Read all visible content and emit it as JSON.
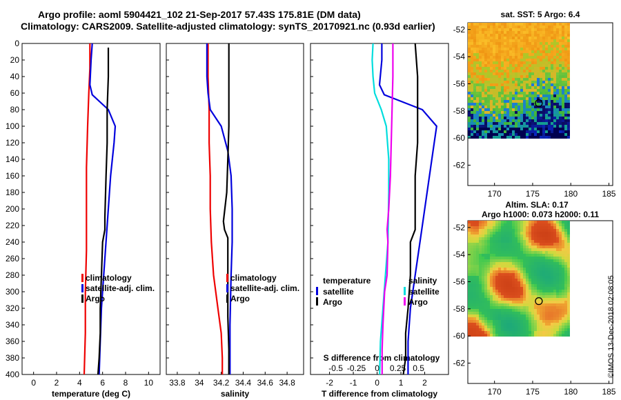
{
  "title": {
    "line1": "Argo profile: aoml 5904421_102 21-Sep-2017 57.43S 175.81E (DM data)",
    "line2": "Climatology: CARS2009. Satellite-adjusted climatology: synTS_20170921.nc (0.93d earlier)"
  },
  "credit": "©IMOS 13-Dec-2018 02:08:05",
  "colors": {
    "climatology": "#ee0000",
    "satellite": "#0000dd",
    "argo": "#000000",
    "s_diff": "#ee00ee",
    "t_diff": "#00dddd"
  },
  "chart_data": [
    {
      "type": "line",
      "id": "temperature",
      "xlabel": "temperature (deg C)",
      "ylabel": "",
      "xlim": [
        -1,
        11
      ],
      "ylim": [
        400,
        0
      ],
      "xticks": [
        "0",
        "2",
        "4",
        "6",
        "8",
        "10"
      ],
      "xtick_values": [
        0,
        2,
        4,
        6,
        8,
        10
      ],
      "yticks": [
        "0",
        "20",
        "40",
        "60",
        "80",
        "100",
        "120",
        "140",
        "160",
        "180",
        "200",
        "220",
        "240",
        "260",
        "280",
        "300",
        "320",
        "340",
        "360",
        "380",
        "400"
      ],
      "legend": [
        "climatology",
        "satellite-adj. clim.",
        "Argo"
      ],
      "series": [
        {
          "name": "climatology",
          "color_key": "climatology",
          "x": [
            4.9,
            4.9,
            4.8,
            4.7,
            4.6,
            4.6,
            4.6,
            4.5,
            4.5,
            4.4
          ],
          "y": [
            0,
            30,
            60,
            100,
            150,
            200,
            250,
            300,
            350,
            400
          ]
        },
        {
          "name": "satellite-adj. clim.",
          "color_key": "satellite",
          "x": [
            5.1,
            5.0,
            4.9,
            5.1,
            6.5,
            7.1,
            7.0,
            6.7,
            6.4,
            6.1,
            5.9,
            5.8,
            5.7
          ],
          "y": [
            0,
            20,
            50,
            62,
            80,
            100,
            120,
            160,
            220,
            280,
            320,
            360,
            400
          ]
        },
        {
          "name": "Argo",
          "color_key": "argo",
          "x": [
            6.5,
            6.5,
            6.4,
            6.4,
            6.3,
            6.2,
            6.2,
            6.0,
            5.9,
            5.8,
            5.8,
            5.7,
            5.6
          ],
          "y": [
            5,
            40,
            80,
            120,
            160,
            210,
            225,
            240,
            280,
            320,
            350,
            380,
            400
          ]
        }
      ]
    },
    {
      "type": "line",
      "id": "salinity",
      "xlabel": "salinity",
      "xlim": [
        33.7,
        34.95
      ],
      "ylim": [
        400,
        0
      ],
      "xticks": [
        "33.8",
        "34",
        "34.2",
        "34.4",
        "34.6",
        "34.8"
      ],
      "xtick_values": [
        33.8,
        34.0,
        34.2,
        34.4,
        34.6,
        34.8
      ],
      "legend": [
        "climatology",
        "satellite-adj. clim.",
        "Argo"
      ],
      "series": [
        {
          "name": "climatology",
          "color_key": "climatology",
          "x": [
            34.08,
            34.08,
            34.09,
            34.09,
            34.1,
            34.1,
            34.11,
            34.13,
            34.17,
            34.2,
            34.21,
            34.21
          ],
          "y": [
            0,
            40,
            80,
            120,
            160,
            200,
            240,
            280,
            320,
            350,
            380,
            400
          ]
        },
        {
          "name": "satellite-adj. clim.",
          "color_key": "satellite",
          "x": [
            34.07,
            34.07,
            34.08,
            34.1,
            34.2,
            34.26,
            34.29,
            34.3,
            34.3,
            34.29,
            34.28,
            34.28
          ],
          "y": [
            0,
            40,
            60,
            80,
            100,
            130,
            160,
            200,
            240,
            280,
            340,
            400
          ]
        },
        {
          "name": "Argo",
          "color_key": "argo",
          "x": [
            34.27,
            34.27,
            34.27,
            34.26,
            34.25,
            34.22,
            34.23,
            34.26,
            34.26,
            34.26,
            34.27,
            34.27
          ],
          "y": [
            0,
            60,
            100,
            140,
            180,
            215,
            225,
            235,
            280,
            330,
            370,
            400
          ]
        }
      ]
    },
    {
      "type": "line",
      "id": "difference",
      "xlabel": "T difference from climatology",
      "xlabel_top": "S difference from climatology",
      "xlim": [
        -2.8,
        3.0
      ],
      "ylim": [
        400,
        0
      ],
      "xticks": [
        "-2",
        "-1",
        "0",
        "1",
        "2"
      ],
      "xtick_values": [
        -2,
        -1,
        0,
        1,
        2
      ],
      "xticks_top": [
        "-0.5",
        "-0.25",
        "0",
        "0.25",
        "0.5"
      ],
      "xtick_top_values": [
        -0.5,
        -0.25,
        0,
        0.25,
        0.5
      ],
      "legend_left": {
        "title": "temperature",
        "items": [
          "satellite",
          "Argo"
        ]
      },
      "legend_right": {
        "title": "salinity",
        "items": [
          "satellite",
          "Argo"
        ]
      },
      "series": [
        {
          "name": "T satellite",
          "color_key": "satellite",
          "x": [
            0.2,
            0.2,
            0.1,
            0.3,
            1.9,
            2.5,
            2.4,
            2.2,
            1.9,
            1.6,
            1.4,
            1.3,
            1.3
          ],
          "y": [
            0,
            20,
            50,
            62,
            80,
            100,
            120,
            160,
            220,
            280,
            320,
            360,
            400
          ]
        },
        {
          "name": "T Argo",
          "color_key": "argo",
          "x": [
            1.6,
            1.7,
            1.7,
            1.7,
            1.6,
            1.6,
            1.6,
            1.4,
            1.4,
            1.3,
            1.2,
            1.2,
            1.1
          ],
          "y": [
            0,
            40,
            80,
            120,
            160,
            200,
            225,
            240,
            280,
            320,
            350,
            380,
            400
          ]
        },
        {
          "name": "S satellite",
          "color_key": "t_diff",
          "x": [
            -0.05,
            -0.06,
            -0.05,
            -0.03,
            0.05,
            0.11,
            0.14,
            0.14,
            0.13,
            0.1,
            0.07,
            0.04,
            0.03
          ],
          "y": [
            0,
            20,
            40,
            60,
            80,
            100,
            140,
            180,
            240,
            280,
            320,
            360,
            400
          ]
        },
        {
          "name": "S Argo",
          "color_key": "s_diff",
          "x": [
            0.19,
            0.19,
            0.18,
            0.17,
            0.16,
            0.14,
            0.12,
            0.13,
            0.12,
            0.09,
            0.07,
            0.06,
            0.06
          ],
          "y": [
            0,
            40,
            80,
            120,
            160,
            200,
            225,
            240,
            280,
            300,
            340,
            370,
            400
          ]
        }
      ]
    },
    {
      "type": "heatmap",
      "id": "sst_map",
      "title": "sat. SST: 5 Argo: 6.4",
      "xlim": [
        166.5,
        185.5
      ],
      "ylim": [
        -63.5,
        -51.5
      ],
      "xticks": [
        "170",
        "175",
        "180",
        "185"
      ],
      "xtick_values": [
        170,
        175,
        180,
        185
      ],
      "yticks": [
        "-52",
        "-54",
        "-56",
        "-58",
        "-60",
        "-62"
      ],
      "ytick_values": [
        -52,
        -54,
        -56,
        -58,
        -60,
        -62
      ],
      "extent": {
        "lon": [
          166.5,
          180
        ],
        "lat": [
          -60,
          -51.5
        ]
      },
      "marker": {
        "lon": 175.81,
        "lat": -57.43
      }
    },
    {
      "type": "heatmap",
      "id": "sla_map",
      "title": "Altim. SLA: 0.17",
      "subtitle": "Argo h1000: 0.073 h2000: 0.11",
      "xlim": [
        166.5,
        185.5
      ],
      "ylim": [
        -63.5,
        -51.5
      ],
      "xticks": [
        "170",
        "175",
        "180",
        "185"
      ],
      "xtick_values": [
        170,
        175,
        180,
        185
      ],
      "yticks": [
        "-52",
        "-54",
        "-56",
        "-58",
        "-60",
        "-62"
      ],
      "ytick_values": [
        -52,
        -54,
        -56,
        -58,
        -60,
        -62
      ],
      "extent": {
        "lon": [
          166.5,
          180
        ],
        "lat": [
          -60,
          -51.5
        ]
      },
      "marker": {
        "lon": 175.81,
        "lat": -57.43
      }
    }
  ]
}
